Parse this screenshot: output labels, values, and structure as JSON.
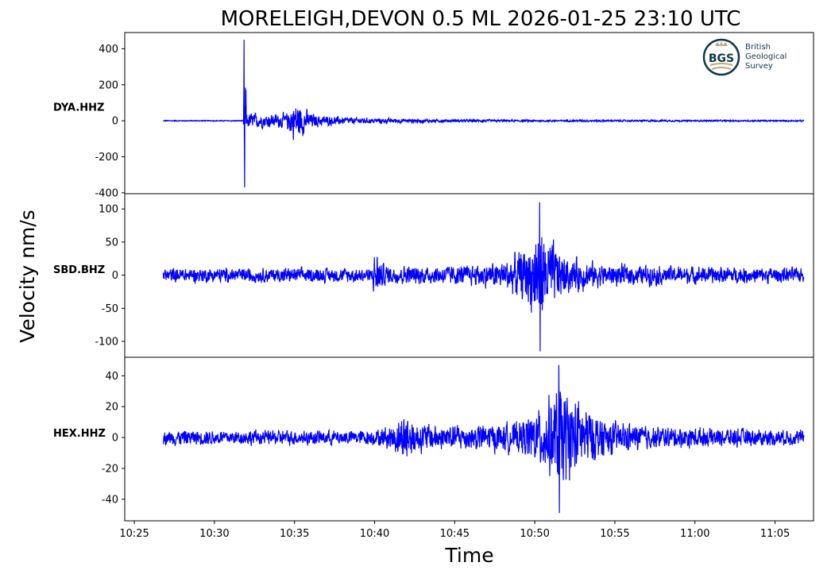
{
  "chart_data": {
    "type": "line",
    "title": "MORELEIGH,DEVON 0.5 ML   2026-01-25 23:10 UTC",
    "xlabel": "Time",
    "ylabel": "Velocity nm/s",
    "x_unit": "minutes after 10:25",
    "xlim": [
      -0.6,
      42.4
    ],
    "x_ticks": [
      {
        "value": 0,
        "label": "10:25"
      },
      {
        "value": 5,
        "label": "10:30"
      },
      {
        "value": 10,
        "label": "10:35"
      },
      {
        "value": 15,
        "label": "10:40"
      },
      {
        "value": 20,
        "label": "10:45"
      },
      {
        "value": 25,
        "label": "10:50"
      },
      {
        "value": 30,
        "label": "10:55"
      },
      {
        "value": 35,
        "label": "11:00"
      },
      {
        "value": 40,
        "label": "11:05"
      }
    ],
    "data_range": [
      1.8,
      41.8
    ],
    "color": "#0000ff",
    "panels": [
      {
        "station": "DYA.HHZ",
        "ylim": [
          -405,
          490
        ],
        "y_ticks": [
          400,
          200,
          0,
          -200,
          -400
        ],
        "envelope": [
          [
            1.8,
            4
          ],
          [
            6.8,
            4
          ],
          [
            6.85,
            450
          ],
          [
            6.95,
            370
          ],
          [
            7.0,
            70
          ],
          [
            8,
            55
          ],
          [
            9.5,
            60
          ],
          [
            10,
            170
          ],
          [
            10.5,
            120
          ],
          [
            11,
            60
          ],
          [
            12,
            40
          ],
          [
            14,
            25
          ],
          [
            16,
            20
          ],
          [
            19,
            12
          ],
          [
            25,
            8
          ],
          [
            41.8,
            6
          ]
        ],
        "peak_max": 450,
        "peak_min": -370
      },
      {
        "station": "SBD.BHZ",
        "ylim": [
          -124,
          123
        ],
        "y_ticks": [
          100,
          50,
          0,
          -50,
          -100
        ],
        "envelope": [
          [
            1.8,
            16
          ],
          [
            14.8,
            16
          ],
          [
            15.1,
            60
          ],
          [
            15.4,
            28
          ],
          [
            16,
            20
          ],
          [
            21,
            22
          ],
          [
            23,
            30
          ],
          [
            24.5,
            60
          ],
          [
            25.3,
            112
          ],
          [
            25.8,
            80
          ],
          [
            27,
            40
          ],
          [
            29,
            25
          ],
          [
            33,
            20
          ],
          [
            41.8,
            16
          ]
        ],
        "peak_max": 110,
        "peak_min": -115
      },
      {
        "station": "HEX.HHZ",
        "ylim": [
          -54,
          52
        ],
        "y_ticks": [
          40,
          20,
          0,
          -20,
          -40
        ],
        "envelope": [
          [
            1.8,
            7
          ],
          [
            15,
            7
          ],
          [
            16,
            12
          ],
          [
            17,
            26
          ],
          [
            17.5,
            14
          ],
          [
            20,
            12
          ],
          [
            24,
            14
          ],
          [
            25.5,
            30
          ],
          [
            26.5,
            47
          ],
          [
            27.5,
            38
          ],
          [
            28.5,
            25
          ],
          [
            30,
            14
          ],
          [
            33,
            10
          ],
          [
            41.8,
            7
          ]
        ],
        "peak_max": 47,
        "peak_min": -49
      }
    ]
  },
  "logo": {
    "abbr": "BGS",
    "line1": "British",
    "line2": "Geological",
    "line3": "Survey"
  }
}
